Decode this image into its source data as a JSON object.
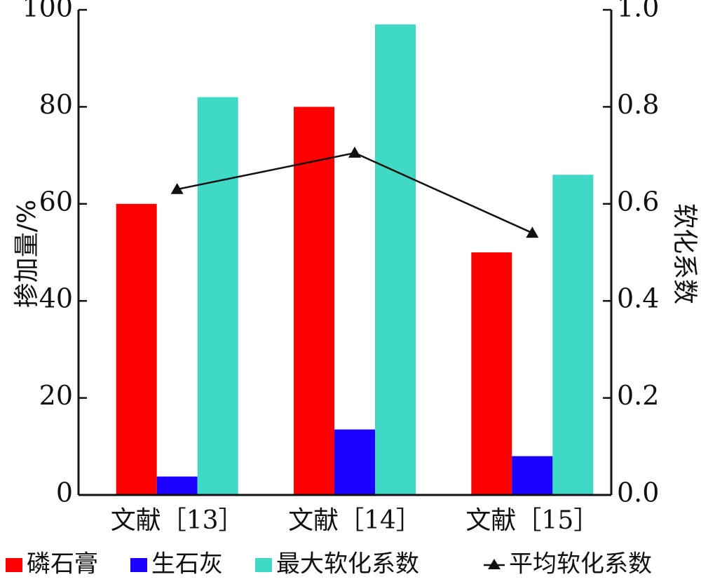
{
  "chart_data": {
    "type": "bar",
    "categories": [
      "文献［13］",
      "文献［14］",
      "文献［15］"
    ],
    "series": [
      {
        "name": "磷石膏",
        "axis": "left",
        "color": "#ff0000",
        "values": [
          60,
          80,
          50
        ]
      },
      {
        "name": "生石灰",
        "axis": "left",
        "color": "#1a00ff",
        "values": [
          3.8,
          13.5,
          8
        ]
      },
      {
        "name": "最大软化系数",
        "axis": "right",
        "color": "#40d9c6",
        "values": [
          0.82,
          0.97,
          0.66
        ]
      },
      {
        "name": "平均软化系数",
        "axis": "right",
        "type": "line",
        "marker": "triangle",
        "color": "#111111",
        "values": [
          0.63,
          0.705,
          0.54
        ]
      }
    ],
    "ylabel": "掺加量/%",
    "y2label": "软化系数",
    "ylim": [
      0,
      100
    ],
    "y2lim": [
      0,
      1.0
    ],
    "yticks": [
      "0",
      "20",
      "40",
      "60",
      "80",
      "100"
    ],
    "y2ticks": [
      "0.0",
      "0.2",
      "0.4",
      "0.6",
      "0.8",
      "1.0"
    ],
    "grid": false,
    "legend_position": "bottom"
  }
}
